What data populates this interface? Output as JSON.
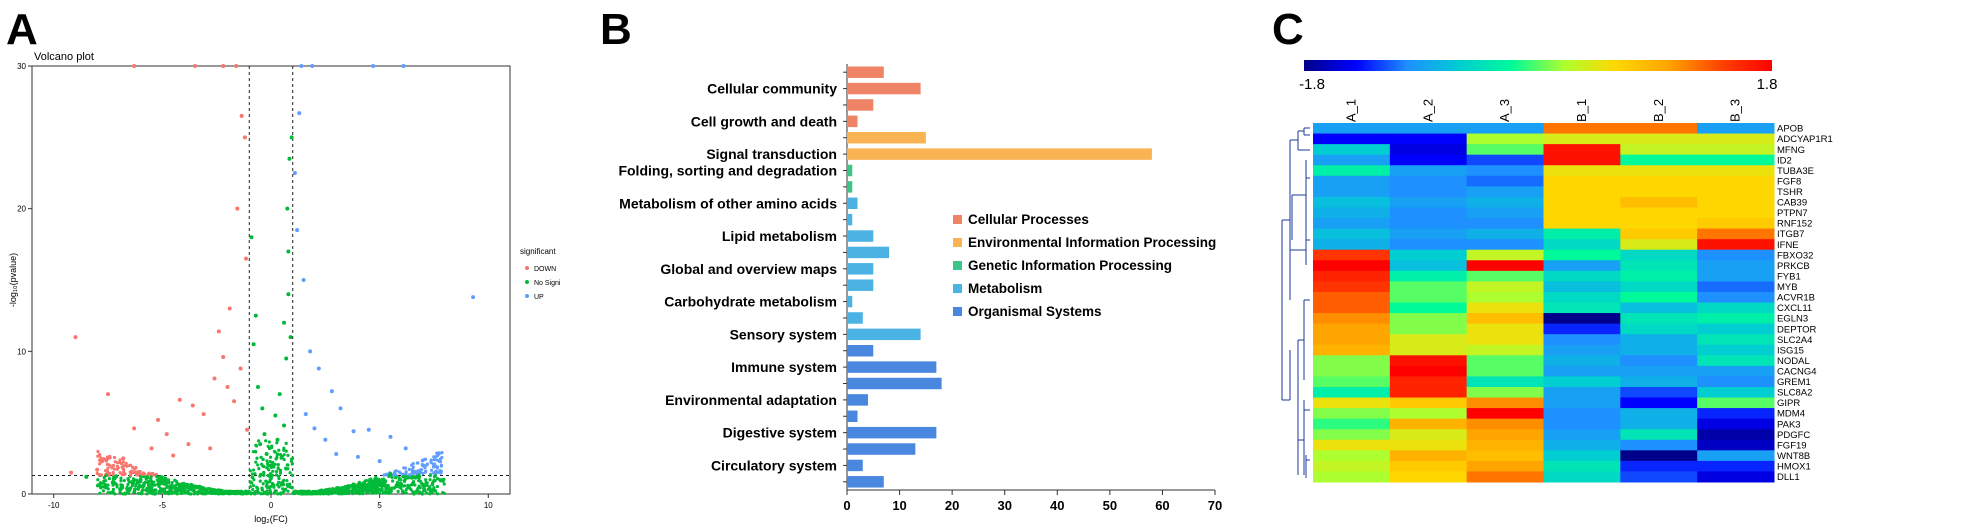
{
  "panels": {
    "a": "A",
    "b": "B",
    "c": "C"
  },
  "chart_data": [
    {
      "type": "scatter",
      "title": "Volcano plot",
      "xlabel": "log₂(FC)",
      "ylabel": "-log₁₀(pvalue)",
      "xlim": [
        -11,
        11
      ],
      "ylim": [
        0,
        30
      ],
      "xticks": [
        -10,
        -5,
        0,
        5,
        10
      ],
      "yticks": [
        0,
        10,
        20,
        30
      ],
      "thresholds": {
        "x": [
          -1,
          1
        ],
        "y": 1.3
      },
      "grid": false,
      "legend": {
        "title": "significant",
        "position": "right"
      },
      "series": [
        {
          "name": "DOWN",
          "color": "#f8766d",
          "points": [
            [
              -9.0,
              11.0
            ],
            [
              -9.2,
              1.5
            ],
            [
              -7.5,
              7.0
            ],
            [
              -6.3,
              4.6
            ],
            [
              -5.2,
              5.2
            ],
            [
              -4.8,
              4.2
            ],
            [
              -4.2,
              6.6
            ],
            [
              -3.6,
              6.2
            ],
            [
              -3.1,
              5.6
            ],
            [
              -2.6,
              8.1
            ],
            [
              -2.4,
              11.4
            ],
            [
              -2.2,
              9.6
            ],
            [
              -2.0,
              7.5
            ],
            [
              -1.9,
              13.0
            ],
            [
              -1.7,
              6.5
            ],
            [
              -1.55,
              20.0
            ],
            [
              -1.35,
              26.5
            ],
            [
              -1.4,
              8.8
            ],
            [
              -1.2,
              25.0
            ],
            [
              -1.15,
              16.5
            ],
            [
              -1.1,
              4.5
            ],
            [
              -2.8,
              3.2
            ],
            [
              -3.8,
              3.5
            ],
            [
              -5.5,
              3.2
            ],
            [
              -6.8,
              2.5
            ],
            [
              -4.5,
              2.7
            ],
            [
              -8.0,
              1.7
            ]
          ]
        },
        {
          "name": "No Significant",
          "color": "#00ba38",
          "points": [
            [
              -0.6,
              7.5
            ],
            [
              -0.5,
              3.5
            ],
            [
              -0.4,
              6.0
            ],
            [
              -0.3,
              4.2
            ],
            [
              -0.2,
              2.8
            ],
            [
              0.2,
              5.5
            ],
            [
              0.3,
              3.8
            ],
            [
              0.4,
              7.0
            ],
            [
              0.5,
              2.6
            ],
            [
              0.6,
              4.8
            ],
            [
              0.8,
              14.0
            ],
            [
              0.75,
              20.0
            ],
            [
              0.85,
              23.5
            ],
            [
              0.8,
              17.0
            ],
            [
              0.7,
              9.5
            ],
            [
              0.9,
              11.0
            ],
            [
              -0.8,
              10.5
            ],
            [
              -0.7,
              12.5
            ],
            [
              0.6,
              12.0
            ],
            [
              0.95,
              25.0
            ],
            [
              -0.9,
              18.0
            ],
            [
              6.8,
              1.3
            ],
            [
              -7.2,
              1.1
            ],
            [
              -6.0,
              1.0
            ],
            [
              5.5,
              1.4
            ],
            [
              -8.5,
              1.2
            ]
          ]
        },
        {
          "name": "UP",
          "color": "#619cff",
          "points": [
            [
              9.3,
              13.8
            ],
            [
              1.3,
              26.7
            ],
            [
              1.1,
              22.5
            ],
            [
              1.2,
              18.5
            ],
            [
              1.5,
              15.0
            ],
            [
              1.8,
              10.0
            ],
            [
              2.2,
              8.8
            ],
            [
              2.8,
              7.2
            ],
            [
              3.2,
              6.0
            ],
            [
              3.8,
              4.4
            ],
            [
              4.5,
              4.5
            ],
            [
              5.5,
              4.0
            ],
            [
              6.2,
              3.2
            ],
            [
              7.0,
              2.0
            ],
            [
              1.6,
              5.6
            ],
            [
              2.0,
              4.6
            ],
            [
              2.5,
              3.8
            ],
            [
              3.0,
              2.8
            ],
            [
              4.0,
              2.6
            ],
            [
              5.0,
              2.3
            ],
            [
              6.6,
              1.5
            ]
          ]
        }
      ]
    },
    {
      "type": "bar",
      "orientation": "horizontal",
      "xlim": [
        0,
        70
      ],
      "xticks": [
        0,
        10,
        20,
        30,
        40,
        50,
        60,
        70
      ],
      "category_labels": [
        "Cellular community",
        "Cell growth and death",
        "Signal transduction",
        "Folding, sorting and degradation",
        "Metabolism of other amino acids",
        "Lipid metabolism",
        "Global and overview maps",
        "Carbohydrate metabolism",
        "Sensory system",
        "Immune system",
        "Environmental adaptation",
        "Digestive system",
        "Circulatory system"
      ],
      "legend": {
        "position": "right",
        "items": [
          {
            "name": "Cellular Processes",
            "color": "#ee8365"
          },
          {
            "name": "Environmental Information Processing",
            "color": "#f9b353"
          },
          {
            "name": "Genetic Information Processing",
            "color": "#3ec488"
          },
          {
            "name": "Metabolism",
            "color": "#4ab3e4"
          },
          {
            "name": "Organismal Systems",
            "color": "#4a88e0"
          }
        ]
      },
      "bars": [
        {
          "value": 7,
          "group": 0
        },
        {
          "value": 14,
          "group": 0
        },
        {
          "value": 5,
          "group": 0
        },
        {
          "value": 2,
          "group": 0
        },
        {
          "value": 15,
          "group": 1
        },
        {
          "value": 58,
          "group": 1
        },
        {
          "value": 1,
          "group": 2
        },
        {
          "value": 1,
          "group": 2
        },
        {
          "value": 2,
          "group": 3
        },
        {
          "value": 1,
          "group": 3
        },
        {
          "value": 5,
          "group": 3
        },
        {
          "value": 8,
          "group": 3
        },
        {
          "value": 5,
          "group": 3
        },
        {
          "value": 5,
          "group": 3
        },
        {
          "value": 1,
          "group": 3
        },
        {
          "value": 3,
          "group": 3
        },
        {
          "value": 14,
          "group": 3
        },
        {
          "value": 5,
          "group": 4
        },
        {
          "value": 17,
          "group": 4
        },
        {
          "value": 18,
          "group": 4
        },
        {
          "value": 4,
          "group": 4
        },
        {
          "value": 2,
          "group": 4
        },
        {
          "value": 17,
          "group": 4
        },
        {
          "value": 13,
          "group": 4
        },
        {
          "value": 3,
          "group": 4
        },
        {
          "value": 7,
          "group": 4
        }
      ]
    },
    {
      "type": "heatmap",
      "color_scale": {
        "min": -1.8,
        "max": 1.8,
        "min_label": "-1.8",
        "max_label": "1.8",
        "colors": [
          "#00008b",
          "#0000ff",
          "#1e90ff",
          "#00ced1",
          "#00fa9a",
          "#adff2f",
          "#ffd700",
          "#ffa500",
          "#ff4500",
          "#ff0000"
        ]
      },
      "columns": [
        "A_1",
        "A_2",
        "A_3",
        "B_1",
        "B_2",
        "B_3"
      ],
      "rows": [
        "APOB",
        "ADCYAP1R1",
        "MFNG",
        "ID2",
        "TUBA3E",
        "FGF8",
        "TSHR",
        "CAB39",
        "PTPN7",
        "RNF152",
        "ITGB7",
        "IFNE",
        "FBXO32",
        "PRKCB",
        "FYB1",
        "MYB",
        "ACVR1B",
        "CXCL11",
        "EGLN3",
        "DEPTOR",
        "SLC2A4",
        "ISG15",
        "NODAL",
        "CACNG4",
        "GREM1",
        "SLC8A2",
        "GIPR",
        "MDM4",
        "PAK3",
        "PDGFC",
        "FGF19",
        "WNT8B",
        "HMOX1",
        "DLL1"
      ],
      "values": [
        [
          -0.9,
          -0.9,
          -0.9,
          1.2,
          1.2,
          -0.9
        ],
        [
          -1.4,
          -1.4,
          0.2,
          0.4,
          0.4,
          0.4
        ],
        [
          -0.6,
          -1.5,
          0.0,
          1.7,
          0.3,
          0.3
        ],
        [
          -0.9,
          -1.4,
          -1.2,
          1.7,
          -0.2,
          -0.2
        ],
        [
          -0.3,
          -0.9,
          -1.0,
          0.5,
          0.5,
          0.5
        ],
        [
          -0.9,
          -1.0,
          -1.1,
          0.6,
          0.6,
          0.6
        ],
        [
          -0.9,
          -1.0,
          -0.9,
          0.6,
          0.6,
          0.6
        ],
        [
          -0.7,
          -0.9,
          -0.8,
          0.6,
          0.8,
          0.6
        ],
        [
          -0.8,
          -1.0,
          -0.9,
          0.6,
          0.6,
          0.6
        ],
        [
          -0.9,
          -1.0,
          -1.0,
          0.6,
          0.6,
          0.7
        ],
        [
          -0.7,
          -0.9,
          -0.8,
          -0.3,
          0.7,
          1.2
        ],
        [
          -0.8,
          -1.0,
          -1.0,
          -0.5,
          0.4,
          1.7
        ],
        [
          1.5,
          -0.6,
          0.3,
          -0.2,
          -0.5,
          -1.0
        ],
        [
          1.8,
          -0.7,
          1.8,
          -0.9,
          -0.4,
          -0.9
        ],
        [
          1.6,
          -0.3,
          0.0,
          -0.5,
          -0.3,
          -0.9
        ],
        [
          1.5,
          0.0,
          0.3,
          -0.7,
          -0.5,
          -1.1
        ],
        [
          1.3,
          0.0,
          0.2,
          -0.5,
          -0.2,
          -1.0
        ],
        [
          1.3,
          -0.2,
          0.5,
          -0.4,
          -0.7,
          -0.5
        ],
        [
          1.1,
          0.1,
          0.8,
          -1.8,
          -0.4,
          -0.3
        ],
        [
          1.0,
          0.1,
          0.5,
          -1.3,
          -0.5,
          -0.6
        ],
        [
          1.0,
          0.4,
          0.5,
          -1.0,
          -0.8,
          -0.4
        ],
        [
          0.9,
          0.4,
          0.3,
          -0.9,
          -0.8,
          -0.6
        ],
        [
          0.1,
          1.7,
          0.0,
          -0.8,
          -1.0,
          -0.4
        ],
        [
          0.1,
          1.8,
          0.0,
          -0.9,
          -0.9,
          -0.9
        ],
        [
          0.0,
          1.6,
          -0.4,
          -0.6,
          -0.8,
          -1.0
        ],
        [
          -0.3,
          1.6,
          0.1,
          -0.9,
          -1.2,
          -0.6
        ],
        [
          0.5,
          0.7,
          1.1,
          -0.9,
          -1.4,
          0.0
        ],
        [
          0.1,
          0.2,
          1.8,
          -1.0,
          -0.8,
          -1.3
        ],
        [
          -0.1,
          0.9,
          1.1,
          -1.0,
          -0.8,
          -1.5
        ],
        [
          0.1,
          0.4,
          1.0,
          -0.9,
          -0.4,
          -1.7
        ],
        [
          0.5,
          0.5,
          0.9,
          -0.8,
          -1.0,
          -1.6
        ],
        [
          0.2,
          0.9,
          0.8,
          -0.6,
          -1.8,
          -0.9
        ],
        [
          0.3,
          0.7,
          1.0,
          -0.4,
          -1.3,
          -1.3
        ],
        [
          0.2,
          0.6,
          1.2,
          -0.5,
          -1.2,
          -1.5
        ]
      ],
      "dendrogram": {
        "position": "left"
      }
    }
  ]
}
